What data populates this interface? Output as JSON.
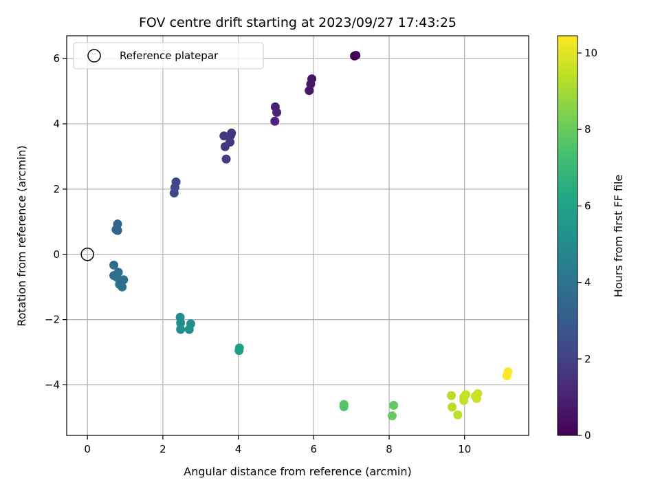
{
  "chart_data": {
    "type": "scatter",
    "title": "FOV centre drift starting at 2023/09/27 17:43:25",
    "xlabel": "Angular distance from reference (arcmin)",
    "ylabel": "Rotation from reference (arcmin)",
    "xlim": [
      -0.55,
      11.7
    ],
    "ylim": [
      -5.55,
      6.7
    ],
    "xticks": [
      0,
      2,
      4,
      6,
      8,
      10
    ],
    "yticks": [
      -4,
      -2,
      0,
      2,
      4,
      6
    ],
    "grid": true,
    "colormap": "viridis",
    "colorbar": {
      "label": "Hours from first FF file",
      "range": [
        0,
        10.45
      ],
      "ticks": [
        0,
        2,
        4,
        6,
        8,
        10
      ]
    },
    "legend": {
      "placement": "upper-left",
      "entries": [
        {
          "label": "Reference platepar",
          "marker": "hollow-circle"
        }
      ]
    },
    "reference_point": {
      "x": 0,
      "y": 0
    },
    "points": [
      {
        "x": 7.08,
        "y": 6.08,
        "hours": 0.0
      },
      {
        "x": 7.12,
        "y": 6.1,
        "hours": 0.05
      },
      {
        "x": 5.95,
        "y": 5.38,
        "hours": 0.6
      },
      {
        "x": 5.92,
        "y": 5.22,
        "hours": 0.65
      },
      {
        "x": 5.88,
        "y": 5.02,
        "hours": 0.7
      },
      {
        "x": 4.98,
        "y": 4.52,
        "hours": 1.0
      },
      {
        "x": 5.02,
        "y": 4.35,
        "hours": 1.05
      },
      {
        "x": 4.97,
        "y": 4.08,
        "hours": 1.1
      },
      {
        "x": 3.82,
        "y": 3.72,
        "hours": 1.55
      },
      {
        "x": 3.8,
        "y": 3.65,
        "hours": 1.6
      },
      {
        "x": 3.62,
        "y": 3.63,
        "hours": 1.62
      },
      {
        "x": 3.78,
        "y": 3.44,
        "hours": 1.65
      },
      {
        "x": 3.65,
        "y": 3.3,
        "hours": 1.68
      },
      {
        "x": 3.68,
        "y": 2.92,
        "hours": 1.7
      },
      {
        "x": 2.35,
        "y": 2.22,
        "hours": 2.2
      },
      {
        "x": 2.32,
        "y": 2.05,
        "hours": 2.25
      },
      {
        "x": 2.3,
        "y": 1.88,
        "hours": 2.3
      },
      {
        "x": 0.8,
        "y": 0.93,
        "hours": 3.3
      },
      {
        "x": 0.76,
        "y": 0.76,
        "hours": 3.35
      },
      {
        "x": 0.8,
        "y": 0.73,
        "hours": 3.35
      },
      {
        "x": 0.7,
        "y": -0.33,
        "hours": 3.7
      },
      {
        "x": 0.82,
        "y": -0.55,
        "hours": 3.75
      },
      {
        "x": 0.7,
        "y": -0.65,
        "hours": 3.75
      },
      {
        "x": 0.78,
        "y": -0.7,
        "hours": 3.8
      },
      {
        "x": 0.96,
        "y": -0.78,
        "hours": 3.82
      },
      {
        "x": 0.88,
        "y": -0.85,
        "hours": 3.85
      },
      {
        "x": 0.85,
        "y": -0.92,
        "hours": 3.85
      },
      {
        "x": 0.92,
        "y": -1.0,
        "hours": 3.9
      },
      {
        "x": 2.46,
        "y": -1.93,
        "hours": 5.1
      },
      {
        "x": 2.47,
        "y": -2.1,
        "hours": 5.12
      },
      {
        "x": 2.74,
        "y": -2.13,
        "hours": 5.15
      },
      {
        "x": 2.47,
        "y": -2.3,
        "hours": 5.15
      },
      {
        "x": 2.7,
        "y": -2.3,
        "hours": 5.2
      },
      {
        "x": 4.03,
        "y": -2.87,
        "hours": 5.9
      },
      {
        "x": 4.02,
        "y": -2.95,
        "hours": 5.92
      },
      {
        "x": 6.8,
        "y": -4.6,
        "hours": 7.6
      },
      {
        "x": 6.8,
        "y": -4.67,
        "hours": 7.62
      },
      {
        "x": 8.12,
        "y": -4.63,
        "hours": 7.9
      },
      {
        "x": 8.08,
        "y": -4.95,
        "hours": 7.95
      },
      {
        "x": 9.65,
        "y": -4.33,
        "hours": 9.3
      },
      {
        "x": 9.67,
        "y": -4.68,
        "hours": 9.35
      },
      {
        "x": 9.82,
        "y": -4.92,
        "hours": 9.4
      },
      {
        "x": 9.98,
        "y": -4.48,
        "hours": 9.45
      },
      {
        "x": 9.98,
        "y": -4.38,
        "hours": 9.5
      },
      {
        "x": 10.03,
        "y": -4.3,
        "hours": 9.55
      },
      {
        "x": 10.28,
        "y": -4.35,
        "hours": 9.6
      },
      {
        "x": 10.32,
        "y": -4.42,
        "hours": 9.62
      },
      {
        "x": 10.35,
        "y": -4.27,
        "hours": 9.65
      },
      {
        "x": 11.15,
        "y": -3.6,
        "hours": 10.4
      },
      {
        "x": 11.12,
        "y": -3.72,
        "hours": 10.45
      }
    ]
  }
}
